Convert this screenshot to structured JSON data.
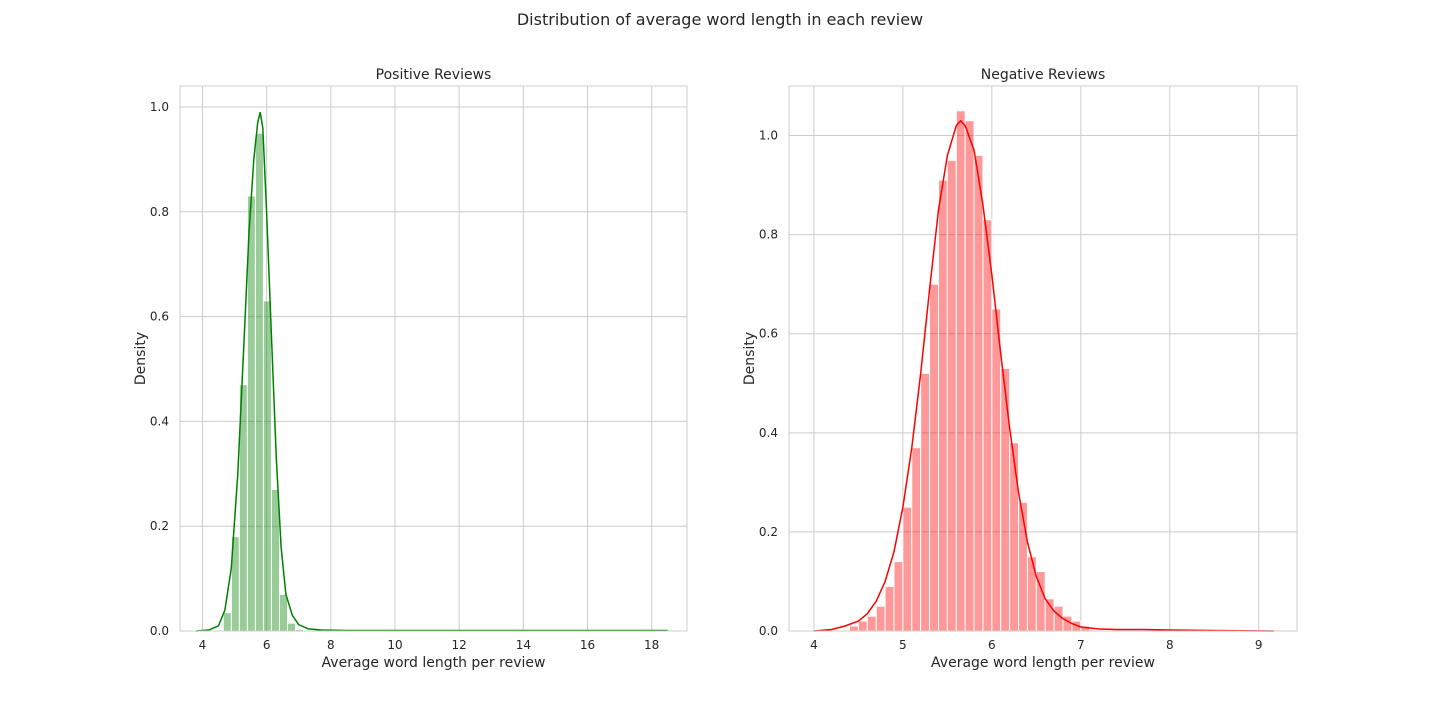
{
  "figure": {
    "title": "Distribution of average word length in each review"
  },
  "chart_data": [
    {
      "type": "histogram",
      "title": "Positive Reviews",
      "xlabel": "Average word length per review",
      "ylabel": "Density",
      "xlim": [
        3.3,
        19.1
      ],
      "ylim": [
        0,
        1.04
      ],
      "xticks": [
        4,
        6,
        8,
        10,
        12,
        14,
        16,
        18
      ],
      "yticks": [
        0.0,
        0.2,
        0.4,
        0.6,
        0.8,
        1.0
      ],
      "xtick_labels": [
        "4",
        "6",
        "8",
        "10",
        "12",
        "14",
        "16",
        "18"
      ],
      "ytick_labels": [
        "0.0",
        "0.2",
        "0.4",
        "0.6",
        "0.8",
        "1.0"
      ],
      "grid": true,
      "bar_color": "#008000",
      "kde_color": "#008000",
      "bin_edges": [
        4.65,
        4.9,
        5.15,
        5.4,
        5.65,
        5.9,
        6.15,
        6.4,
        6.65,
        6.9,
        7.15
      ],
      "bar_values": [
        0.035,
        0.18,
        0.47,
        0.83,
        0.95,
        0.63,
        0.27,
        0.07,
        0.015,
        0.003
      ],
      "kde": {
        "x": [
          3.8,
          4.2,
          4.5,
          4.7,
          4.9,
          5.1,
          5.3,
          5.45,
          5.6,
          5.72,
          5.8,
          5.88,
          6.0,
          6.15,
          6.3,
          6.45,
          6.6,
          6.8,
          7.0,
          7.3,
          7.7,
          8.5,
          10,
          12,
          14,
          16,
          18.5
        ],
        "y": [
          0.0,
          0.002,
          0.01,
          0.04,
          0.12,
          0.3,
          0.56,
          0.76,
          0.9,
          0.97,
          0.99,
          0.96,
          0.8,
          0.56,
          0.33,
          0.16,
          0.07,
          0.03,
          0.012,
          0.004,
          0.002,
          0.001,
          0.001,
          0.001,
          0.001,
          0.001,
          0.001
        ]
      }
    },
    {
      "type": "histogram",
      "title": "Negative Reviews",
      "xlabel": "Average word length per review",
      "ylabel": "Density",
      "xlim": [
        3.72,
        9.43
      ],
      "ylim": [
        0,
        1.1
      ],
      "xticks": [
        4,
        5,
        6,
        7,
        8,
        9
      ],
      "yticks": [
        0.0,
        0.2,
        0.4,
        0.6,
        0.8,
        1.0
      ],
      "xtick_labels": [
        "4",
        "5",
        "6",
        "7",
        "8",
        "9"
      ],
      "ytick_labels": [
        "0.0",
        "0.2",
        "0.4",
        "0.6",
        "0.8",
        "1.0"
      ],
      "grid": true,
      "bar_color": "#ff0000",
      "kde_color": "#ff0000",
      "bin_edges": [
        4.4,
        4.5,
        4.6,
        4.7,
        4.8,
        4.9,
        5.0,
        5.1,
        5.2,
        5.3,
        5.4,
        5.5,
        5.6,
        5.7,
        5.8,
        5.9,
        6.0,
        6.1,
        6.2,
        6.3,
        6.4,
        6.5,
        6.6,
        6.7,
        6.8,
        6.9,
        7.0,
        7.1
      ],
      "bar_values": [
        0.01,
        0.02,
        0.03,
        0.05,
        0.09,
        0.14,
        0.25,
        0.37,
        0.52,
        0.7,
        0.91,
        0.95,
        1.05,
        1.03,
        0.96,
        0.83,
        0.65,
        0.53,
        0.38,
        0.26,
        0.15,
        0.12,
        0.065,
        0.05,
        0.03,
        0.02,
        0.01
      ],
      "kde": {
        "x": [
          4.0,
          4.2,
          4.35,
          4.5,
          4.6,
          4.7,
          4.8,
          4.9,
          5.0,
          5.1,
          5.2,
          5.3,
          5.4,
          5.5,
          5.6,
          5.65,
          5.7,
          5.8,
          5.9,
          6.0,
          6.1,
          6.2,
          6.3,
          6.4,
          6.5,
          6.6,
          6.7,
          6.8,
          6.9,
          7.0,
          7.2,
          7.4,
          7.7,
          8.0,
          8.5,
          9.17
        ],
        "y": [
          0.0,
          0.003,
          0.01,
          0.02,
          0.035,
          0.06,
          0.1,
          0.16,
          0.25,
          0.37,
          0.52,
          0.69,
          0.85,
          0.96,
          1.02,
          1.03,
          1.02,
          0.97,
          0.86,
          0.72,
          0.56,
          0.41,
          0.28,
          0.18,
          0.11,
          0.065,
          0.04,
          0.025,
          0.015,
          0.008,
          0.004,
          0.003,
          0.003,
          0.002,
          0.001,
          0.0
        ]
      }
    }
  ]
}
